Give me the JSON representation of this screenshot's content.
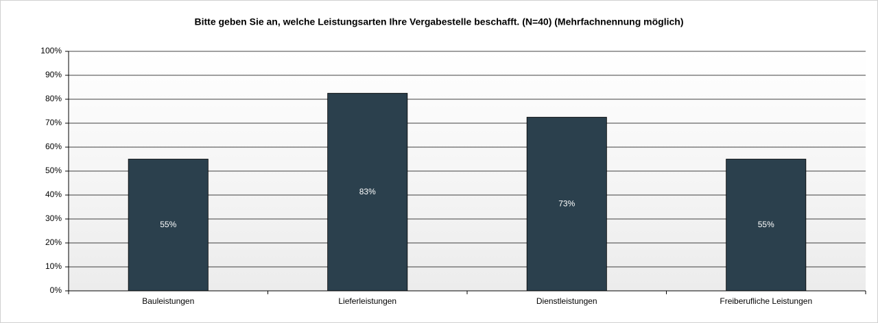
{
  "chart_data": {
    "type": "bar",
    "title": "Bitte geben Sie an, welche Leistungsarten Ihre Vergabestelle beschafft. (N=40) (Mehrfachnennung möglich)",
    "categories": [
      "Bauleistungen",
      "Lieferleistungen",
      "Dienstleistungen",
      "Freiberufliche Leistungen"
    ],
    "values": [
      55,
      82.5,
      72.5,
      55
    ],
    "value_labels": [
      "55%",
      "83%",
      "73%",
      "55%"
    ],
    "color": "#2b404d",
    "ylim": [
      0,
      100
    ],
    "yticks": [
      {
        "value": 0,
        "label": "0%"
      },
      {
        "value": 10,
        "label": "10%"
      },
      {
        "value": 20,
        "label": "20%"
      },
      {
        "value": 30,
        "label": "30%"
      },
      {
        "value": 40,
        "label": "40%"
      },
      {
        "value": 50,
        "label": "50%"
      },
      {
        "value": 60,
        "label": "60%"
      },
      {
        "value": 70,
        "label": "70%"
      },
      {
        "value": 80,
        "label": "80%"
      },
      {
        "value": 90,
        "label": "90%"
      },
      {
        "value": 100,
        "label": "100%"
      }
    ],
    "grid": true
  }
}
